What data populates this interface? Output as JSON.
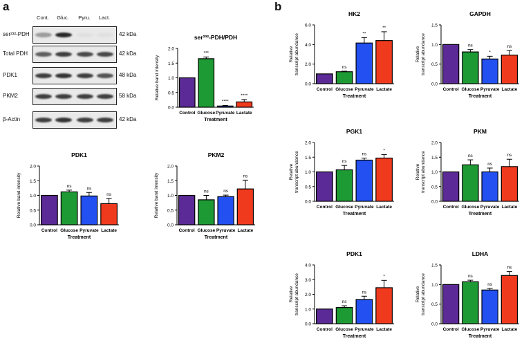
{
  "panel_a": {
    "letter": "a"
  },
  "panel_b": {
    "letter": "b"
  },
  "blot": {
    "lanes": [
      "Cont.",
      "Gluc.",
      "Pyru.",
      "Lact."
    ],
    "rows": [
      {
        "label": "ser²³²-PDH",
        "kda": "42 kDa",
        "intensities": [
          0.35,
          0.9,
          0.03,
          0.03
        ]
      },
      {
        "label": "Total PDH",
        "kda": "42 kDa",
        "intensities": [
          0.65,
          0.8,
          0.75,
          0.75
        ]
      },
      {
        "label": "PDK1",
        "kda": "48 kDa",
        "intensities": [
          0.8,
          0.85,
          0.8,
          0.7
        ]
      },
      {
        "label": "PKM2",
        "kda": "58 kDa",
        "intensities": [
          0.8,
          0.8,
          0.8,
          0.8
        ]
      },
      {
        "label": "β-Actin",
        "kda": "42 kDa",
        "intensities": [
          0.8,
          0.85,
          0.8,
          0.8
        ]
      }
    ]
  },
  "colors": {
    "control": "#5b2a96",
    "glucose": "#1e9a35",
    "pyruvate": "#2350f0",
    "lactate": "#f03a1e"
  },
  "chart_data": [
    {
      "id": "a1",
      "type": "bar",
      "title": "ser²³²-PDH/PDH",
      "xlabel": "Treatment",
      "ylabel": "Relative band intensity",
      "categories": [
        "Control",
        "Glucose",
        "Pyruvate",
        "Lactate"
      ],
      "values": [
        1.0,
        1.65,
        0.04,
        0.18
      ],
      "errors": [
        0,
        0.06,
        0.02,
        0.08
      ],
      "annotations": [
        "",
        "***",
        "****",
        "****"
      ],
      "ylim": [
        0,
        2.0
      ],
      "yticks": [
        "0.0",
        "0.5",
        "1.0",
        "1.5",
        "2.0"
      ]
    },
    {
      "id": "a2",
      "type": "bar",
      "title": "PDK1",
      "xlabel": "Treatment",
      "ylabel": "Relative band intensity",
      "categories": [
        "Control",
        "Glucose",
        "Pyruvate",
        "Lactate"
      ],
      "values": [
        1.0,
        1.12,
        0.98,
        0.72
      ],
      "errors": [
        0,
        0.06,
        0.12,
        0.18
      ],
      "annotations": [
        "",
        "ns",
        "ns",
        "ns"
      ],
      "ylim": [
        0,
        2.0
      ],
      "yticks": [
        "0.0",
        "0.5",
        "1.0",
        "1.5",
        "2.0"
      ]
    },
    {
      "id": "a3",
      "type": "bar",
      "title": "PKM2",
      "xlabel": "Treatment",
      "ylabel": "Relative band intensity",
      "categories": [
        "Control",
        "Glucose",
        "Pyruvate",
        "Lactate"
      ],
      "values": [
        1.0,
        0.85,
        0.96,
        1.22
      ],
      "errors": [
        0,
        0.15,
        0.05,
        0.3
      ],
      "annotations": [
        "",
        "ns",
        "ns",
        "ns"
      ],
      "ylim": [
        0,
        2.0
      ],
      "yticks": [
        "0.0",
        "0.5",
        "1.0",
        "1.5",
        "2.0"
      ]
    },
    {
      "id": "b1",
      "type": "bar",
      "title": "HK2",
      "xlabel": "Treatment",
      "ylabel": "Relative\ntranscript abundance",
      "categories": [
        "Control",
        "Glucose",
        "Pyruvate",
        "Lactate"
      ],
      "values": [
        1.0,
        1.22,
        4.15,
        4.4
      ],
      "errors": [
        0,
        0.06,
        0.55,
        0.9
      ],
      "annotations": [
        "",
        "ns",
        "**",
        "**"
      ],
      "ylim": [
        0,
        6.0
      ],
      "yticks": [
        "0.0",
        "2.0",
        "4.0",
        "6.0"
      ]
    },
    {
      "id": "b2",
      "type": "bar",
      "title": "GAPDH",
      "xlabel": "Treatment",
      "ylabel": "Relative\ntranscript abundance",
      "categories": [
        "Control",
        "Glucose",
        "Pyruvate",
        "Lactate"
      ],
      "values": [
        1.0,
        0.81,
        0.63,
        0.73
      ],
      "errors": [
        0,
        0.06,
        0.07,
        0.12
      ],
      "annotations": [
        "",
        "ns",
        "*",
        "ns"
      ],
      "ylim": [
        0,
        1.5
      ],
      "yticks": [
        "0.0",
        "0.5",
        "1.0",
        "1.5"
      ]
    },
    {
      "id": "b3",
      "type": "bar",
      "title": "PGK1",
      "xlabel": "Treatment",
      "ylabel": "Relative\ntranscript abundance",
      "categories": [
        "Control",
        "Glucose",
        "Pyruvate",
        "Lactate"
      ],
      "values": [
        1.0,
        1.07,
        1.4,
        1.47
      ],
      "errors": [
        0,
        0.15,
        0.07,
        0.12
      ],
      "annotations": [
        "",
        "ns",
        "ns",
        "*"
      ],
      "ylim": [
        0,
        2.0
      ],
      "yticks": [
        "0.0",
        "0.5",
        "1.0",
        "1.5",
        "2.0"
      ]
    },
    {
      "id": "b4",
      "type": "bar",
      "title": "PKM",
      "xlabel": "Treatment",
      "ylabel": "Relative\ntranscript abundance",
      "categories": [
        "Control",
        "Glucose",
        "Pyruvate",
        "Lactate"
      ],
      "values": [
        1.0,
        1.24,
        1.0,
        1.18
      ],
      "errors": [
        0,
        0.17,
        0.13,
        0.25
      ],
      "annotations": [
        "",
        "ns",
        "ns",
        "ns"
      ],
      "ylim": [
        0,
        2.0
      ],
      "yticks": [
        "0.0",
        "0.5",
        "1.0",
        "1.5",
        "2.0"
      ]
    },
    {
      "id": "b5",
      "type": "bar",
      "title": "PDK1",
      "xlabel": "Treatment",
      "ylabel": "Relative\ntranscript abundance",
      "categories": [
        "Control",
        "Glucose",
        "Pyruvate",
        "Lactate"
      ],
      "values": [
        1.0,
        1.1,
        1.65,
        2.45
      ],
      "errors": [
        0,
        0.12,
        0.22,
        0.5
      ],
      "annotations": [
        "",
        "ns",
        "ns",
        "*"
      ],
      "ylim": [
        0,
        4.0
      ],
      "yticks": [
        "0.0",
        "1.0",
        "2.0",
        "3.0",
        "4.0"
      ]
    },
    {
      "id": "b6",
      "type": "bar",
      "title": "LDHA",
      "xlabel": "Treatment",
      "ylabel": "Relative\ntranscript abundance",
      "categories": [
        "Control",
        "Glucose",
        "Pyruvate",
        "Lactate"
      ],
      "values": [
        1.0,
        1.07,
        0.86,
        1.23
      ],
      "errors": [
        0,
        0.04,
        0.04,
        0.1
      ],
      "annotations": [
        "",
        "ns",
        "ns",
        "ns"
      ],
      "ylim": [
        0,
        1.5
      ],
      "yticks": [
        "0.0",
        "0.5",
        "1.0",
        "1.5"
      ]
    }
  ]
}
